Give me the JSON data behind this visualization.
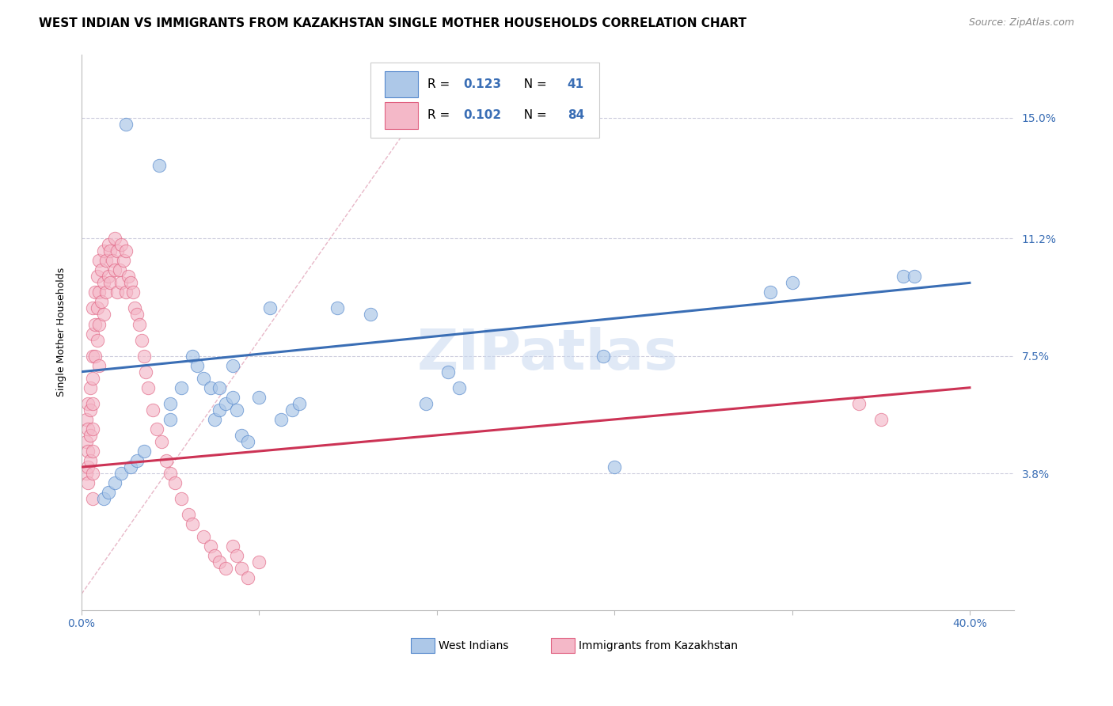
{
  "title": "WEST INDIAN VS IMMIGRANTS FROM KAZAKHSTAN SINGLE MOTHER HOUSEHOLDS CORRELATION CHART",
  "source": "Source: ZipAtlas.com",
  "ylabel": "Single Mother Households",
  "ytick_labels": [
    "3.8%",
    "7.5%",
    "11.2%",
    "15.0%"
  ],
  "ytick_values": [
    0.038,
    0.075,
    0.112,
    0.15
  ],
  "xtick_positions": [
    0.0,
    0.08,
    0.16,
    0.24,
    0.32,
    0.4
  ],
  "xlim": [
    0.0,
    0.42
  ],
  "ylim": [
    -0.005,
    0.17
  ],
  "legend_r_blue": "0.123",
  "legend_n_blue": "41",
  "legend_r_pink": "0.102",
  "legend_n_pink": "84",
  "legend_label_blue": "West Indians",
  "legend_label_pink": "Immigrants from Kazakhstan",
  "blue_fill": "#adc8e8",
  "blue_edge": "#5588cc",
  "pink_fill": "#f4b8c8",
  "pink_edge": "#e06080",
  "blue_line_color": "#3a6eb5",
  "pink_line_color": "#cc3355",
  "diag_line_color": "#e8b8c8",
  "background_color": "#ffffff",
  "grid_color": "#ccccdd",
  "blue_line_y_start": 0.07,
  "blue_line_y_end": 0.098,
  "pink_line_y_start": 0.04,
  "pink_line_y_end": 0.065,
  "blue_scatter_x": [
    0.02,
    0.035,
    0.04,
    0.04,
    0.045,
    0.05,
    0.052,
    0.055,
    0.058,
    0.06,
    0.062,
    0.062,
    0.065,
    0.068,
    0.068,
    0.07,
    0.072,
    0.075,
    0.08,
    0.085,
    0.09,
    0.095,
    0.098,
    0.01,
    0.012,
    0.015,
    0.018,
    0.022,
    0.025,
    0.028,
    0.115,
    0.13,
    0.155,
    0.165,
    0.17,
    0.235,
    0.24,
    0.31,
    0.32,
    0.37,
    0.375
  ],
  "blue_scatter_y": [
    0.148,
    0.135,
    0.06,
    0.055,
    0.065,
    0.075,
    0.072,
    0.068,
    0.065,
    0.055,
    0.058,
    0.065,
    0.06,
    0.062,
    0.072,
    0.058,
    0.05,
    0.048,
    0.062,
    0.09,
    0.055,
    0.058,
    0.06,
    0.03,
    0.032,
    0.035,
    0.038,
    0.04,
    0.042,
    0.045,
    0.09,
    0.088,
    0.06,
    0.07,
    0.065,
    0.075,
    0.04,
    0.095,
    0.098,
    0.1,
    0.1
  ],
  "pink_scatter_x": [
    0.002,
    0.002,
    0.002,
    0.003,
    0.003,
    0.003,
    0.003,
    0.003,
    0.004,
    0.004,
    0.004,
    0.004,
    0.005,
    0.005,
    0.005,
    0.005,
    0.005,
    0.005,
    0.005,
    0.005,
    0.005,
    0.006,
    0.006,
    0.006,
    0.007,
    0.007,
    0.007,
    0.008,
    0.008,
    0.008,
    0.008,
    0.009,
    0.009,
    0.01,
    0.01,
    0.01,
    0.011,
    0.011,
    0.012,
    0.012,
    0.013,
    0.013,
    0.014,
    0.015,
    0.015,
    0.016,
    0.016,
    0.017,
    0.018,
    0.018,
    0.019,
    0.02,
    0.02,
    0.021,
    0.022,
    0.023,
    0.024,
    0.025,
    0.026,
    0.027,
    0.028,
    0.029,
    0.03,
    0.032,
    0.034,
    0.036,
    0.038,
    0.04,
    0.042,
    0.045,
    0.048,
    0.05,
    0.055,
    0.058,
    0.06,
    0.062,
    0.065,
    0.068,
    0.07,
    0.072,
    0.075,
    0.08,
    0.35,
    0.36
  ],
  "pink_scatter_y": [
    0.055,
    0.048,
    0.038,
    0.06,
    0.052,
    0.045,
    0.04,
    0.035,
    0.065,
    0.058,
    0.05,
    0.042,
    0.09,
    0.082,
    0.075,
    0.068,
    0.06,
    0.052,
    0.045,
    0.038,
    0.03,
    0.095,
    0.085,
    0.075,
    0.1,
    0.09,
    0.08,
    0.105,
    0.095,
    0.085,
    0.072,
    0.102,
    0.092,
    0.108,
    0.098,
    0.088,
    0.105,
    0.095,
    0.11,
    0.1,
    0.108,
    0.098,
    0.105,
    0.112,
    0.102,
    0.108,
    0.095,
    0.102,
    0.11,
    0.098,
    0.105,
    0.108,
    0.095,
    0.1,
    0.098,
    0.095,
    0.09,
    0.088,
    0.085,
    0.08,
    0.075,
    0.07,
    0.065,
    0.058,
    0.052,
    0.048,
    0.042,
    0.038,
    0.035,
    0.03,
    0.025,
    0.022,
    0.018,
    0.015,
    0.012,
    0.01,
    0.008,
    0.015,
    0.012,
    0.008,
    0.005,
    0.01,
    0.06,
    0.055
  ],
  "watermark": "ZIPatlas",
  "watermark_color": "#c8d8f0"
}
